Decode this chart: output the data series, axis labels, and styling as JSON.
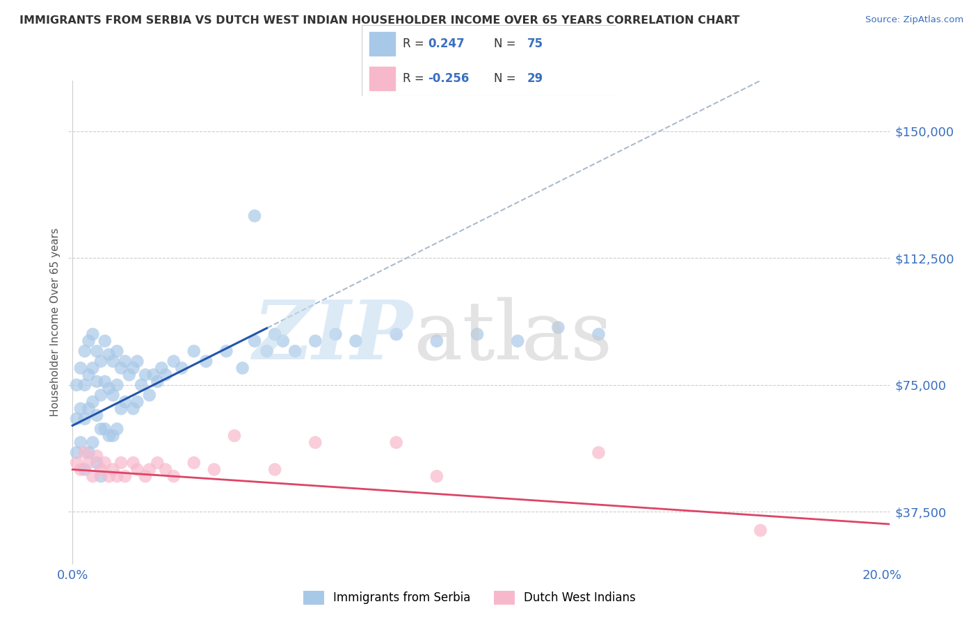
{
  "title": "IMMIGRANTS FROM SERBIA VS DUTCH WEST INDIAN HOUSEHOLDER INCOME OVER 65 YEARS CORRELATION CHART",
  "source": "Source: ZipAtlas.com",
  "ylabel": "Householder Income Over 65 years",
  "xlim": [
    -0.001,
    0.202
  ],
  "ylim": [
    22000,
    165000
  ],
  "yticks": [
    37500,
    75000,
    112500,
    150000
  ],
  "ytick_labels": [
    "$37,500",
    "$75,000",
    "$112,500",
    "$150,000"
  ],
  "xtick_positions": [
    0.0,
    0.2
  ],
  "xtick_labels": [
    "0.0%",
    "20.0%"
  ],
  "serbia_R": "0.247",
  "serbia_N": "75",
  "dutch_R": "-0.256",
  "dutch_N": "29",
  "serbia_dot_color": "#a8c8e8",
  "dutch_dot_color": "#f8b8cc",
  "serbia_line_color": "#2255aa",
  "dutch_line_color": "#dd4466",
  "dash_line_color": "#aabbcc",
  "serbia_scatter_x": [
    0.001,
    0.001,
    0.001,
    0.002,
    0.002,
    0.002,
    0.003,
    0.003,
    0.003,
    0.003,
    0.004,
    0.004,
    0.004,
    0.004,
    0.005,
    0.005,
    0.005,
    0.005,
    0.006,
    0.006,
    0.006,
    0.006,
    0.007,
    0.007,
    0.007,
    0.007,
    0.008,
    0.008,
    0.008,
    0.009,
    0.009,
    0.009,
    0.01,
    0.01,
    0.01,
    0.011,
    0.011,
    0.011,
    0.012,
    0.012,
    0.013,
    0.013,
    0.014,
    0.015,
    0.015,
    0.016,
    0.016,
    0.017,
    0.018,
    0.019,
    0.02,
    0.021,
    0.022,
    0.023,
    0.025,
    0.027,
    0.03,
    0.033,
    0.038,
    0.042,
    0.045,
    0.048,
    0.05,
    0.052,
    0.055,
    0.06,
    0.065,
    0.07,
    0.08,
    0.09,
    0.1,
    0.11,
    0.12,
    0.13,
    0.045
  ],
  "serbia_scatter_y": [
    65000,
    75000,
    55000,
    80000,
    68000,
    58000,
    85000,
    75000,
    65000,
    50000,
    88000,
    78000,
    68000,
    55000,
    90000,
    80000,
    70000,
    58000,
    85000,
    76000,
    66000,
    52000,
    82000,
    72000,
    62000,
    48000,
    88000,
    76000,
    62000,
    84000,
    74000,
    60000,
    82000,
    72000,
    60000,
    85000,
    75000,
    62000,
    80000,
    68000,
    82000,
    70000,
    78000,
    80000,
    68000,
    82000,
    70000,
    75000,
    78000,
    72000,
    78000,
    76000,
    80000,
    78000,
    82000,
    80000,
    85000,
    82000,
    85000,
    80000,
    88000,
    85000,
    90000,
    88000,
    85000,
    88000,
    90000,
    88000,
    90000,
    88000,
    90000,
    88000,
    92000,
    90000,
    125000
  ],
  "dutch_scatter_x": [
    0.001,
    0.002,
    0.003,
    0.004,
    0.005,
    0.006,
    0.007,
    0.008,
    0.009,
    0.01,
    0.011,
    0.012,
    0.013,
    0.015,
    0.016,
    0.018,
    0.019,
    0.021,
    0.023,
    0.025,
    0.03,
    0.035,
    0.04,
    0.05,
    0.06,
    0.08,
    0.09,
    0.13,
    0.17
  ],
  "dutch_scatter_y": [
    52000,
    50000,
    55000,
    52000,
    48000,
    54000,
    50000,
    52000,
    48000,
    50000,
    48000,
    52000,
    48000,
    52000,
    50000,
    48000,
    50000,
    52000,
    50000,
    48000,
    52000,
    50000,
    60000,
    50000,
    58000,
    58000,
    48000,
    55000,
    32000
  ]
}
